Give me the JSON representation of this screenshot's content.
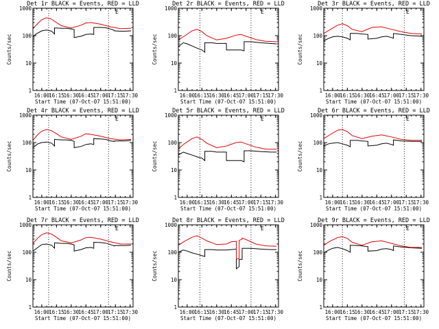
{
  "figure": {
    "x_axis_title": "Start Time (07-Oct-07 15:51:00)",
    "y_axis_title": "Counts/sec",
    "x_tick_labels": [
      "16:00",
      "16:15",
      "16:30",
      "16:45",
      "17:00",
      "17:15",
      "17:30"
    ],
    "y_tick_labels": [
      "1",
      "10",
      "100",
      "1000"
    ],
    "corner_mark": "E",
    "colors": {
      "events": "#000000",
      "lld": "#e00000",
      "axes": "#000000",
      "background": "#ffffff"
    }
  },
  "chart_data": [
    {
      "type": "line",
      "title": "Det 1r BLACK = Events, RED = LLD",
      "xlabel": "Start Time (07-Oct-07 15:51:00)",
      "ylabel": "Counts/sec",
      "x_unit": "time of day (07-Oct-07)",
      "xlim": [
        "15:51",
        "17:33"
      ],
      "ylim": [
        1,
        1000
      ],
      "yscale": "log",
      "vlines": [
        "16:07",
        "17:08"
      ],
      "series": [
        {
          "name": "Events",
          "color": "#000000",
          "x": [
            "15:51",
            "15:56",
            "16:00",
            "16:05",
            "16:10",
            "16:13",
            "16:13",
            "16:20",
            "16:25",
            "16:30",
            "16:33",
            "16:33",
            "16:40",
            "16:45",
            "16:50",
            "16:53",
            "16:53",
            "17:00",
            "17:05",
            "17:10",
            "17:14",
            "17:14",
            "17:20",
            "17:25",
            "17:31"
          ],
          "y": [
            95,
            125,
            150,
            160,
            145,
            115,
            190,
            185,
            185,
            175,
            165,
            85,
            95,
            110,
            115,
            110,
            200,
            200,
            195,
            175,
            155,
            150,
            145,
            145,
            150
          ]
        },
        {
          "name": "LLD",
          "color": "#e00000",
          "x": [
            "15:51",
            "15:56",
            "16:00",
            "16:05",
            "16:10",
            "16:15",
            "16:20",
            "16:30",
            "16:40",
            "16:45",
            "16:50",
            "17:00",
            "17:10",
            "17:20",
            "17:31"
          ],
          "y": [
            180,
            280,
            380,
            450,
            400,
            300,
            230,
            190,
            240,
            290,
            300,
            260,
            210,
            180,
            185
          ]
        }
      ]
    },
    {
      "type": "line",
      "title": "Det 2r BLACK = Events, RED = LLD",
      "xlabel": "Start Time (07-Oct-07 15:51:00)",
      "ylabel": "Counts/sec",
      "x_unit": "time of day (07-Oct-07)",
      "xlim": [
        "15:51",
        "17:33"
      ],
      "ylim": [
        1,
        1000
      ],
      "yscale": "log",
      "vlines": [
        "16:13",
        "17:05"
      ],
      "series": [
        {
          "name": "Events",
          "color": "#000000",
          "x": [
            "15:51",
            "15:56",
            "16:00",
            "16:05",
            "16:10",
            "16:15",
            "16:18",
            "16:18",
            "16:25",
            "16:30",
            "16:35",
            "16:40",
            "16:40",
            "16:48",
            "16:55",
            "16:58",
            "16:58",
            "17:05",
            "17:15",
            "17:25",
            "17:31"
          ],
          "y": [
            40,
            55,
            50,
            42,
            35,
            30,
            25,
            55,
            55,
            52,
            52,
            52,
            30,
            30,
            30,
            28,
            60,
            60,
            55,
            52,
            50
          ]
        },
        {
          "name": "LLD",
          "color": "#e00000",
          "x": [
            "15:51",
            "15:58",
            "16:05",
            "16:10",
            "16:15",
            "16:20",
            "16:30",
            "16:40",
            "16:50",
            "16:55",
            "17:00",
            "17:10",
            "17:20",
            "17:31"
          ],
          "y": [
            70,
            100,
            150,
            170,
            140,
            100,
            70,
            80,
            105,
            110,
            95,
            72,
            62,
            60
          ]
        }
      ]
    },
    {
      "type": "line",
      "title": "Det 3r BLACK = Events, RED = LLD",
      "xlabel": "Start Time (07-Oct-07 15:51:00)",
      "ylabel": "Counts/sec",
      "x_unit": "time of day (07-Oct-07)",
      "xlim": [
        "15:51",
        "17:33"
      ],
      "ylim": [
        1,
        1000
      ],
      "yscale": "log",
      "vlines": [
        "16:10",
        "17:13"
      ],
      "series": [
        {
          "name": "Events",
          "color": "#000000",
          "x": [
            "15:51",
            "15:56",
            "16:00",
            "16:05",
            "16:10",
            "16:15",
            "16:18",
            "16:18",
            "16:25",
            "16:30",
            "16:36",
            "16:36",
            "16:45",
            "16:50",
            "16:55",
            "17:00",
            "17:02",
            "17:02",
            "17:10",
            "17:20",
            "17:31"
          ],
          "y": [
            65,
            80,
            90,
            95,
            90,
            80,
            70,
            120,
            120,
            115,
            110,
            75,
            80,
            90,
            95,
            85,
            80,
            120,
            110,
            100,
            95
          ]
        },
        {
          "name": "LLD",
          "color": "#e00000",
          "x": [
            "15:51",
            "15:58",
            "16:05",
            "16:10",
            "16:15",
            "16:20",
            "16:30",
            "16:40",
            "16:50",
            "17:00",
            "17:10",
            "17:20",
            "17:31"
          ],
          "y": [
            120,
            170,
            240,
            270,
            230,
            170,
            140,
            200,
            210,
            170,
            140,
            120,
            115
          ]
        }
      ]
    },
    {
      "type": "line",
      "title": "Det 4r BLACK = Events, RED = LLD",
      "xlabel": "Start Time (07-Oct-07 15:51:00)",
      "ylabel": "Counts/sec",
      "x_unit": "time of day (07-Oct-07)",
      "xlim": [
        "15:51",
        "17:33"
      ],
      "ylim": [
        1,
        1000
      ],
      "yscale": "log",
      "vlines": [
        "16:07",
        "17:08"
      ],
      "series": [
        {
          "name": "Events",
          "color": "#000000",
          "x": [
            "15:51",
            "15:56",
            "16:00",
            "16:05",
            "16:10",
            "16:13",
            "16:13",
            "16:20",
            "16:25",
            "16:30",
            "16:33",
            "16:33",
            "16:40",
            "16:45",
            "16:50",
            "16:53",
            "16:53",
            "17:00",
            "17:05",
            "17:10",
            "17:14",
            "17:14",
            "17:20",
            "17:25",
            "17:31"
          ],
          "y": [
            65,
            90,
            100,
            105,
            95,
            75,
            130,
            125,
            125,
            120,
            110,
            65,
            72,
            85,
            90,
            85,
            140,
            135,
            130,
            115,
            110,
            115,
            115,
            115,
            120
          ]
        },
        {
          "name": "LLD",
          "color": "#e00000",
          "x": [
            "15:51",
            "15:56",
            "16:00",
            "16:05",
            "16:10",
            "16:15",
            "16:20",
            "16:30",
            "16:40",
            "16:45",
            "16:50",
            "17:00",
            "17:10",
            "17:20",
            "17:31"
          ],
          "y": [
            120,
            200,
            260,
            300,
            270,
            210,
            160,
            130,
            170,
            210,
            200,
            170,
            140,
            125,
            130
          ]
        }
      ]
    },
    {
      "type": "line",
      "title": "Det 5r BLACK = Events, RED = LLD",
      "xlabel": "Start Time (07-Oct-07 15:51:00)",
      "ylabel": "Counts/sec",
      "x_unit": "time of day (07-Oct-07)",
      "xlim": [
        "15:51",
        "17:33"
      ],
      "ylim": [
        1,
        1000
      ],
      "yscale": "log",
      "vlines": [
        "16:13",
        "17:05"
      ],
      "series": [
        {
          "name": "Events",
          "color": "#000000",
          "x": [
            "15:51",
            "15:56",
            "16:00",
            "16:05",
            "16:10",
            "16:15",
            "16:18",
            "16:18",
            "16:25",
            "16:30",
            "16:35",
            "16:40",
            "16:40",
            "16:48",
            "16:55",
            "16:58",
            "16:58",
            "17:05",
            "17:15",
            "17:25",
            "17:31"
          ],
          "y": [
            35,
            45,
            40,
            35,
            30,
            27,
            22,
            48,
            48,
            45,
            45,
            45,
            22,
            22,
            22,
            20,
            50,
            50,
            47,
            45,
            45
          ]
        },
        {
          "name": "LLD",
          "color": "#e00000",
          "x": [
            "15:51",
            "15:58",
            "16:05",
            "16:10",
            "16:15",
            "16:20",
            "16:30",
            "16:40",
            "16:50",
            "16:55",
            "17:00",
            "17:10",
            "17:20",
            "17:31"
          ],
          "y": [
            60,
            95,
            140,
            160,
            130,
            95,
            65,
            75,
            100,
            105,
            90,
            68,
            58,
            57
          ]
        }
      ]
    },
    {
      "type": "line",
      "title": "Det 6r BLACK = Events, RED = LLD",
      "xlabel": "Start Time (07-Oct-07 15:51:00)",
      "ylabel": "Counts/sec",
      "x_unit": "time of day (07-Oct-07)",
      "xlim": [
        "15:51",
        "17:33"
      ],
      "ylim": [
        1,
        1000
      ],
      "yscale": "log",
      "vlines": [
        "16:10",
        "17:13"
      ],
      "series": [
        {
          "name": "Events",
          "color": "#000000",
          "x": [
            "15:51",
            "15:56",
            "16:00",
            "16:05",
            "16:10",
            "16:15",
            "16:18",
            "16:18",
            "16:25",
            "16:30",
            "16:36",
            "16:36",
            "16:45",
            "16:50",
            "16:55",
            "17:00",
            "17:02",
            "17:02",
            "17:10",
            "17:20",
            "17:31"
          ],
          "y": [
            75,
            90,
            95,
            100,
            90,
            80,
            70,
            120,
            120,
            115,
            110,
            75,
            80,
            90,
            95,
            85,
            80,
            125,
            115,
            110,
            110
          ]
        },
        {
          "name": "LLD",
          "color": "#e00000",
          "x": [
            "15:51",
            "15:58",
            "16:05",
            "16:10",
            "16:15",
            "16:20",
            "16:30",
            "16:40",
            "16:50",
            "17:00",
            "17:10",
            "17:20",
            "17:31"
          ],
          "y": [
            140,
            200,
            280,
            300,
            250,
            180,
            140,
            170,
            190,
            160,
            130,
            120,
            120
          ]
        }
      ]
    },
    {
      "type": "line",
      "title": "Det 7r BLACK = Events, RED = LLD",
      "xlabel": "Start Time (07-Oct-07 15:51:00)",
      "ylabel": "Counts/sec",
      "x_unit": "time of day (07-Oct-07)",
      "xlim": [
        "15:51",
        "17:33"
      ],
      "ylim": [
        1,
        1000
      ],
      "yscale": "log",
      "vlines": [
        "16:07",
        "17:08"
      ],
      "series": [
        {
          "name": "Events",
          "color": "#000000",
          "x": [
            "15:51",
            "15:56",
            "16:00",
            "16:05",
            "16:10",
            "16:13",
            "16:13",
            "16:20",
            "16:25",
            "16:30",
            "16:33",
            "16:33",
            "16:40",
            "16:45",
            "16:50",
            "16:53",
            "16:53",
            "17:00",
            "17:05",
            "17:10",
            "17:14",
            "17:14",
            "17:20",
            "17:25",
            "17:31"
          ],
          "y": [
            110,
            150,
            190,
            200,
            180,
            140,
            220,
            210,
            210,
            200,
            185,
            110,
            125,
            145,
            150,
            140,
            230,
            225,
            215,
            190,
            170,
            175,
            175,
            175,
            180
          ]
        },
        {
          "name": "LLD",
          "color": "#e00000",
          "x": [
            "15:51",
            "15:56",
            "16:00",
            "16:05",
            "16:10",
            "16:15",
            "16:20",
            "16:30",
            "16:40",
            "16:45",
            "16:50",
            "17:00",
            "17:10",
            "17:20",
            "17:31"
          ],
          "y": [
            210,
            330,
            440,
            510,
            460,
            350,
            260,
            220,
            280,
            340,
            350,
            300,
            240,
            200,
            200
          ]
        }
      ]
    },
    {
      "type": "line",
      "title": "Det 8r BLACK = Events, RED = LLD",
      "xlabel": "Start Time (07-Oct-07 15:51:00)",
      "ylabel": "Counts/sec",
      "x_unit": "time of day (07-Oct-07)",
      "xlim": [
        "15:51",
        "17:33"
      ],
      "ylim": [
        1,
        1000
      ],
      "yscale": "log",
      "vlines": [
        "16:13",
        "17:05"
      ],
      "series": [
        {
          "name": "Events",
          "color": "#000000",
          "x": [
            "15:51",
            "15:56",
            "16:00",
            "16:05",
            "16:10",
            "16:15",
            "16:18",
            "16:18",
            "16:25",
            "16:30",
            "16:40",
            "16:45",
            "16:50",
            "16:50",
            "16:53",
            "16:53",
            "16:56",
            "16:56",
            "17:05",
            "17:15",
            "17:25",
            "17:31"
          ],
          "y": [
            100,
            120,
            110,
            95,
            85,
            75,
            70,
            125,
            125,
            120,
            120,
            125,
            130,
            25,
            30,
            55,
            55,
            140,
            140,
            130,
            125,
            125
          ]
        },
        {
          "name": "LLD",
          "color": "#e00000",
          "x": [
            "15:51",
            "15:58",
            "16:05",
            "16:10",
            "16:15",
            "16:20",
            "16:30",
            "16:40",
            "16:45",
            "16:50",
            "16:50",
            "16:53",
            "16:53",
            "16:56",
            "16:56",
            "17:00",
            "17:10",
            "17:20",
            "17:31"
          ],
          "y": [
            180,
            260,
            350,
            400,
            330,
            260,
            190,
            200,
            240,
            250,
            55,
            60,
            270,
            300,
            330,
            290,
            200,
            170,
            165
          ]
        }
      ]
    },
    {
      "type": "line",
      "title": "Det 9r BLACK = Events, RED = LLD",
      "xlabel": "Start Time (07-Oct-07 15:51:00)",
      "ylabel": "Counts/sec",
      "x_unit": "time of day (07-Oct-07)",
      "xlim": [
        "15:51",
        "17:33"
      ],
      "ylim": [
        1,
        1000
      ],
      "yscale": "log",
      "vlines": [
        "16:10",
        "17:13"
      ],
      "series": [
        {
          "name": "Events",
          "color": "#000000",
          "x": [
            "15:51",
            "15:56",
            "16:00",
            "16:05",
            "16:10",
            "16:15",
            "16:18",
            "16:18",
            "16:25",
            "16:30",
            "16:36",
            "16:36",
            "16:45",
            "16:50",
            "16:55",
            "17:00",
            "17:02",
            "17:02",
            "17:10",
            "17:20",
            "17:31"
          ],
          "y": [
            95,
            120,
            140,
            150,
            135,
            115,
            100,
            180,
            175,
            170,
            160,
            110,
            115,
            130,
            135,
            125,
            115,
            170,
            155,
            145,
            140
          ]
        },
        {
          "name": "LLD",
          "color": "#e00000",
          "x": [
            "15:51",
            "15:58",
            "16:05",
            "16:10",
            "16:15",
            "16:20",
            "16:30",
            "16:40",
            "16:50",
            "17:00",
            "17:10",
            "17:20",
            "17:31"
          ],
          "y": [
            180,
            260,
            340,
            370,
            320,
            230,
            180,
            240,
            260,
            210,
            170,
            150,
            150
          ]
        }
      ]
    }
  ]
}
